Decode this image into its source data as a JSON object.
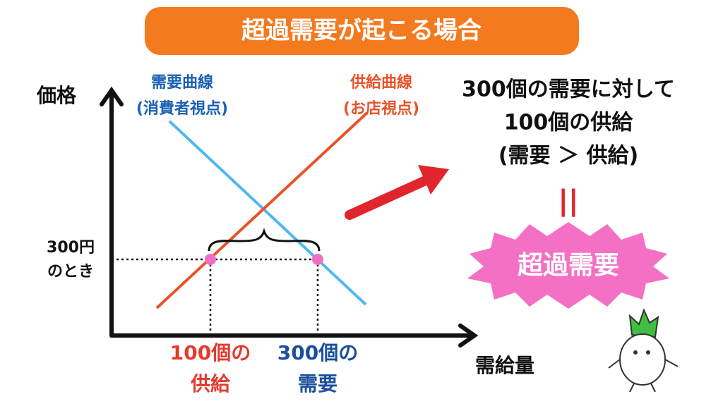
{
  "header": {
    "title": "超過需要が起こる場合"
  },
  "axes": {
    "y_label": "価格",
    "x_label": "需給量"
  },
  "curves": {
    "demand": {
      "label": [
        "需要曲線",
        "(消費者視点)"
      ]
    },
    "supply": {
      "label": [
        "供給曲線",
        "(お店視点)"
      ]
    }
  },
  "price_label": [
    "300円",
    "のとき"
  ],
  "quantity_labels": {
    "supply": [
      "100個の",
      "供給"
    ],
    "demand": [
      "300個の",
      "需要"
    ]
  },
  "explanation": {
    "lines": [
      "300個の需要に対して",
      "100個の供給",
      "(需要 ＞ 供給)"
    ],
    "equals": "||"
  },
  "badge": "超過需要"
}
